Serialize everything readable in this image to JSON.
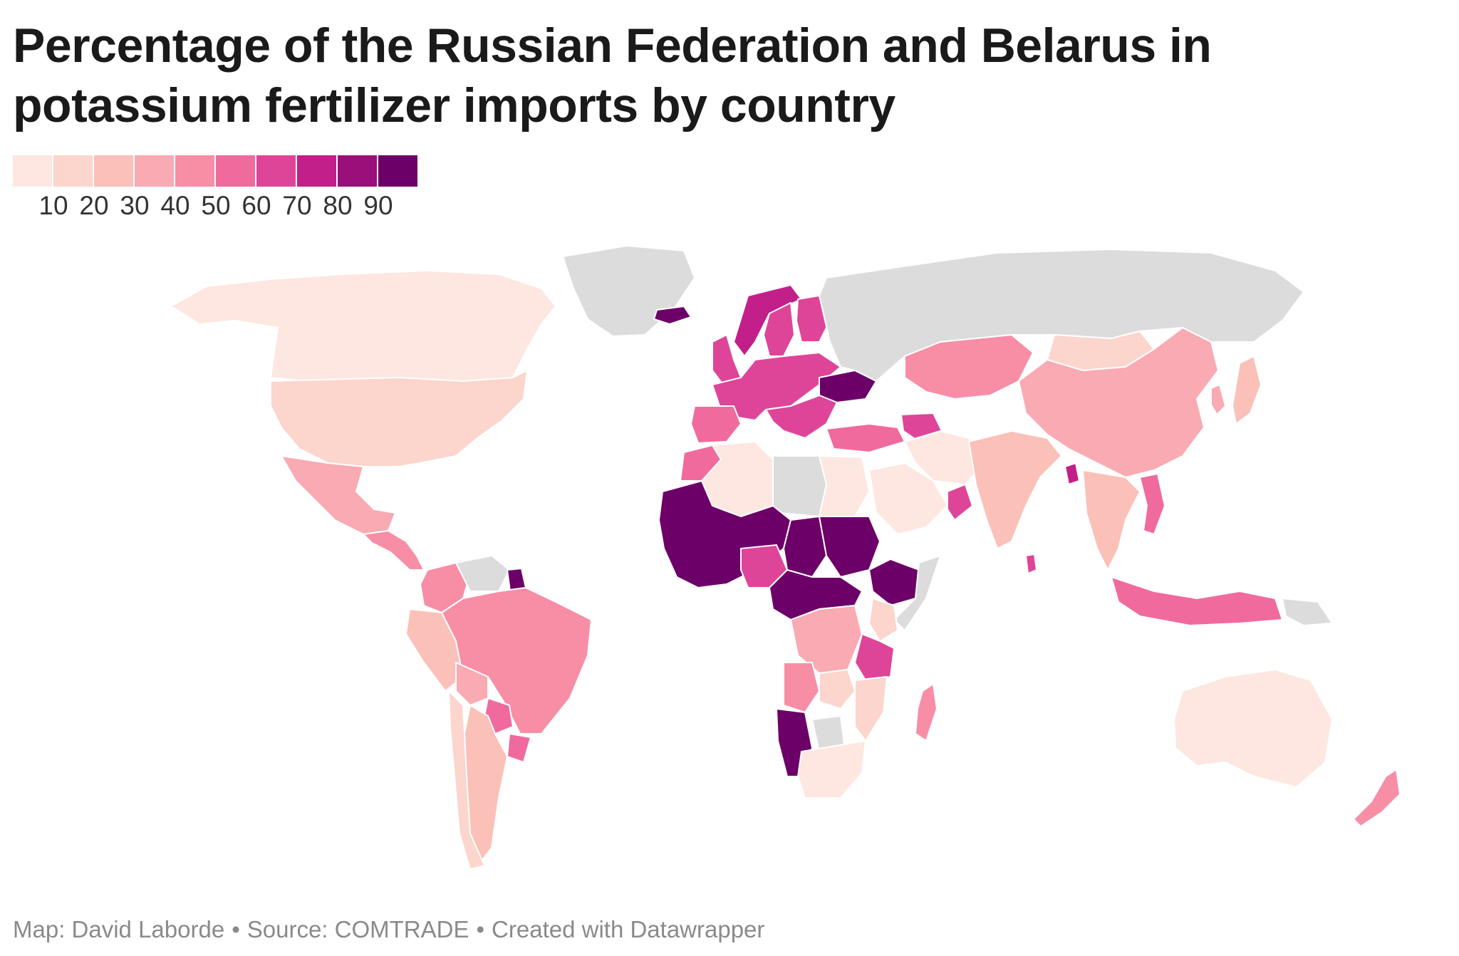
{
  "title": "Percentage of the Russian Federation and Belarus in potassium fertilizer imports by country",
  "legend": {
    "colors": [
      "#fde7e0",
      "#fcd5cc",
      "#fbc0b8",
      "#f9aab2",
      "#f78ea6",
      "#f06a9e",
      "#de4598",
      "#c21f8a",
      "#9a0f7a",
      "#6d0068"
    ],
    "ticks": [
      "10",
      "20",
      "30",
      "40",
      "50",
      "60",
      "70",
      "80",
      "90"
    ]
  },
  "map": {
    "no_data_color": "#dcdcdc",
    "border_color": "#ffffff",
    "regions": [
      {
        "name": "Canada",
        "class": 0
      },
      {
        "name": "Greenland",
        "class": null
      },
      {
        "name": "United States",
        "class": 1
      },
      {
        "name": "Mexico",
        "class": 3
      },
      {
        "name": "Central America",
        "class": 4
      },
      {
        "name": "Colombia",
        "class": 4
      },
      {
        "name": "Venezuela",
        "class": null
      },
      {
        "name": "Suriname",
        "class": 9
      },
      {
        "name": "Peru",
        "class": 2
      },
      {
        "name": "Brazil",
        "class": 4
      },
      {
        "name": "Bolivia",
        "class": 3
      },
      {
        "name": "Paraguay",
        "class": 5
      },
      {
        "name": "Argentina",
        "class": 2
      },
      {
        "name": "Chile",
        "class": 1
      },
      {
        "name": "Uruguay",
        "class": 5
      },
      {
        "name": "Iceland",
        "class": 9
      },
      {
        "name": "Norway",
        "class": 7
      },
      {
        "name": "Sweden",
        "class": 6
      },
      {
        "name": "Finland",
        "class": 6
      },
      {
        "name": "United Kingdom",
        "class": 6
      },
      {
        "name": "Western Europe",
        "class": 6
      },
      {
        "name": "Spain",
        "class": 5
      },
      {
        "name": "Ukraine",
        "class": 9
      },
      {
        "name": "Balkans",
        "class": 6
      },
      {
        "name": "Turkey",
        "class": 5
      },
      {
        "name": "Russia",
        "class": null
      },
      {
        "name": "Kazakhstan",
        "class": 4
      },
      {
        "name": "Mongolia",
        "class": 1
      },
      {
        "name": "China",
        "class": 3
      },
      {
        "name": "Japan",
        "class": 2
      },
      {
        "name": "Korea",
        "class": 3
      },
      {
        "name": "India",
        "class": 2
      },
      {
        "name": "Sri Lanka",
        "class": 6
      },
      {
        "name": "Bangladesh",
        "class": 7
      },
      {
        "name": "Southeast Asia",
        "class": 2
      },
      {
        "name": "Vietnam",
        "class": 5
      },
      {
        "name": "Indonesia",
        "class": 5
      },
      {
        "name": "Papua New Guinea",
        "class": null
      },
      {
        "name": "Iran",
        "class": 0
      },
      {
        "name": "Caucasus",
        "class": 6
      },
      {
        "name": "Saudi Arabia",
        "class": 0
      },
      {
        "name": "Oman",
        "class": 6
      },
      {
        "name": "Morocco",
        "class": 5
      },
      {
        "name": "Algeria",
        "class": 0
      },
      {
        "name": "Libya",
        "class": null
      },
      {
        "name": "Egypt",
        "class": 0
      },
      {
        "name": "West Africa",
        "class": 9
      },
      {
        "name": "Nigeria",
        "class": 6
      },
      {
        "name": "Chad",
        "class": 9
      },
      {
        "name": "Sudan",
        "class": 9
      },
      {
        "name": "Ethiopia",
        "class": 9
      },
      {
        "name": "Somalia",
        "class": null
      },
      {
        "name": "Kenya",
        "class": 1
      },
      {
        "name": "Central Africa",
        "class": 9
      },
      {
        "name": "DR Congo",
        "class": 3
      },
      {
        "name": "Tanzania",
        "class": 6
      },
      {
        "name": "Angola",
        "class": 4
      },
      {
        "name": "Zambia",
        "class": 1
      },
      {
        "name": "Mozambique",
        "class": 1
      },
      {
        "name": "Namibia",
        "class": 9
      },
      {
        "name": "Botswana",
        "class": null
      },
      {
        "name": "South Africa",
        "class": 0
      },
      {
        "name": "Madagascar",
        "class": 4
      },
      {
        "name": "Australia",
        "class": 0
      },
      {
        "name": "New Zealand",
        "class": 4
      }
    ]
  },
  "footer": {
    "map_credit": "Map: David Laborde",
    "source": "Source: COMTRADE",
    "created": "Created with Datawrapper",
    "separator": "•"
  }
}
